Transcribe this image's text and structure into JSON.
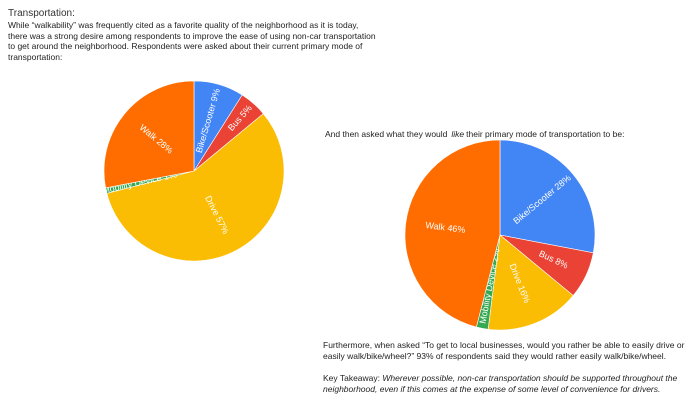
{
  "heading": "Transportation:",
  "intro": "While “walkability” was frequently cited as a favorite quality of the neighborhood as it is today, there was a strong desire among respondents to improve the ease of using non-car transportation to get around the neighborhood. Respondents were asked about their current primary mode of transportation:",
  "prompt2": {
    "before": "And then asked what they would",
    "emphasis": "like",
    "after": "their primary mode of transportation to be:"
  },
  "followup": "Furthermore, when asked “To get to local businesses, would you rather be able to easily drive or easily walk/bike/wheel?” 93% of respondents said they would rather easily walk/bike/wheel.",
  "takeaway": {
    "label": "Key Takeaway: ",
    "text": "Wherever possible, non-car transportation should be supported throughout the neighborhood, even if this comes at the expense of some level of convenience for drivers."
  },
  "chart_data": [
    {
      "type": "pie",
      "title": "",
      "slices": [
        {
          "label": "Bike/Scooter 9%",
          "value": 9,
          "color": "#4285F4"
        },
        {
          "label": "Bus 5%",
          "value": 5,
          "color": "#EA4335"
        },
        {
          "label": "Drive 57%",
          "value": 57,
          "color": "#FBBC04"
        },
        {
          "label": "Mobility Device 1%",
          "value": 1,
          "color": "#34A853"
        },
        {
          "label": "Walk 28%",
          "value": 28,
          "color": "#FF6D01"
        }
      ]
    },
    {
      "type": "pie",
      "title": "",
      "slices": [
        {
          "label": "Bike/Scooter 28%",
          "value": 28,
          "color": "#4285F4"
        },
        {
          "label": "Bus 8%",
          "value": 8,
          "color": "#EA4335"
        },
        {
          "label": "Drive 16%",
          "value": 16,
          "color": "#FBBC04"
        },
        {
          "label": "Mobility Device 2%",
          "value": 2,
          "color": "#34A853"
        },
        {
          "label": "Walk 46%",
          "value": 46,
          "color": "#FF6D01"
        }
      ]
    }
  ]
}
